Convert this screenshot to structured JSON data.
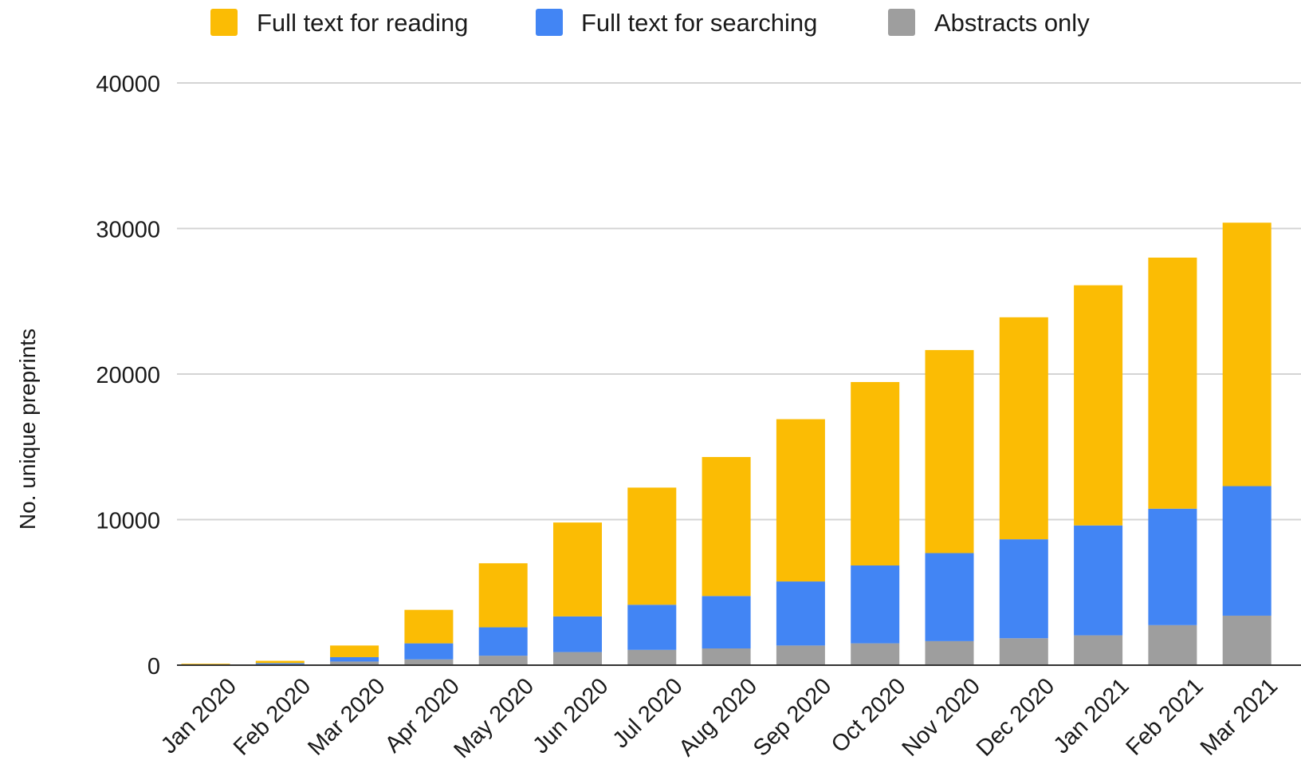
{
  "chart_data": {
    "type": "bar",
    "stacked": true,
    "title": "",
    "xlabel": "",
    "ylabel": "No. unique preprints",
    "ylim": [
      0,
      40000
    ],
    "yticks": [
      "0",
      "10000",
      "20000",
      "30000",
      "40000"
    ],
    "grid": true,
    "legend_position": "top",
    "categories": [
      "Jan 2020",
      "Feb 2020",
      "Mar 2020",
      "Apr 2020",
      "May 2020",
      "Jun 2020",
      "Jul 2020",
      "Aug 2020",
      "Sep 2020",
      "Oct 2020",
      "Nov 2020",
      "Dec 2020",
      "Jan 2021",
      "Feb 2021",
      "Mar 2021"
    ],
    "series": [
      {
        "name": "Abstracts only",
        "color": "#9e9e9e",
        "values": [
          20,
          60,
          250,
          400,
          650,
          900,
          1050,
          1150,
          1350,
          1500,
          1650,
          1850,
          2050,
          2750,
          3400
        ]
      },
      {
        "name": "Full text for searching",
        "color": "#4285f4",
        "values": [
          30,
          80,
          300,
          1100,
          1950,
          2450,
          3100,
          3600,
          4400,
          5350,
          6050,
          6800,
          7550,
          8000,
          8900
        ]
      },
      {
        "name": "Full text for reading",
        "color": "#fbbc04",
        "values": [
          50,
          160,
          800,
          2300,
          4400,
          6450,
          8050,
          9550,
          11150,
          12600,
          13950,
          15250,
          16500,
          17250,
          18100
        ]
      }
    ],
    "legend_order": [
      "Full text for reading",
      "Full text for searching",
      "Abstracts only"
    ]
  }
}
